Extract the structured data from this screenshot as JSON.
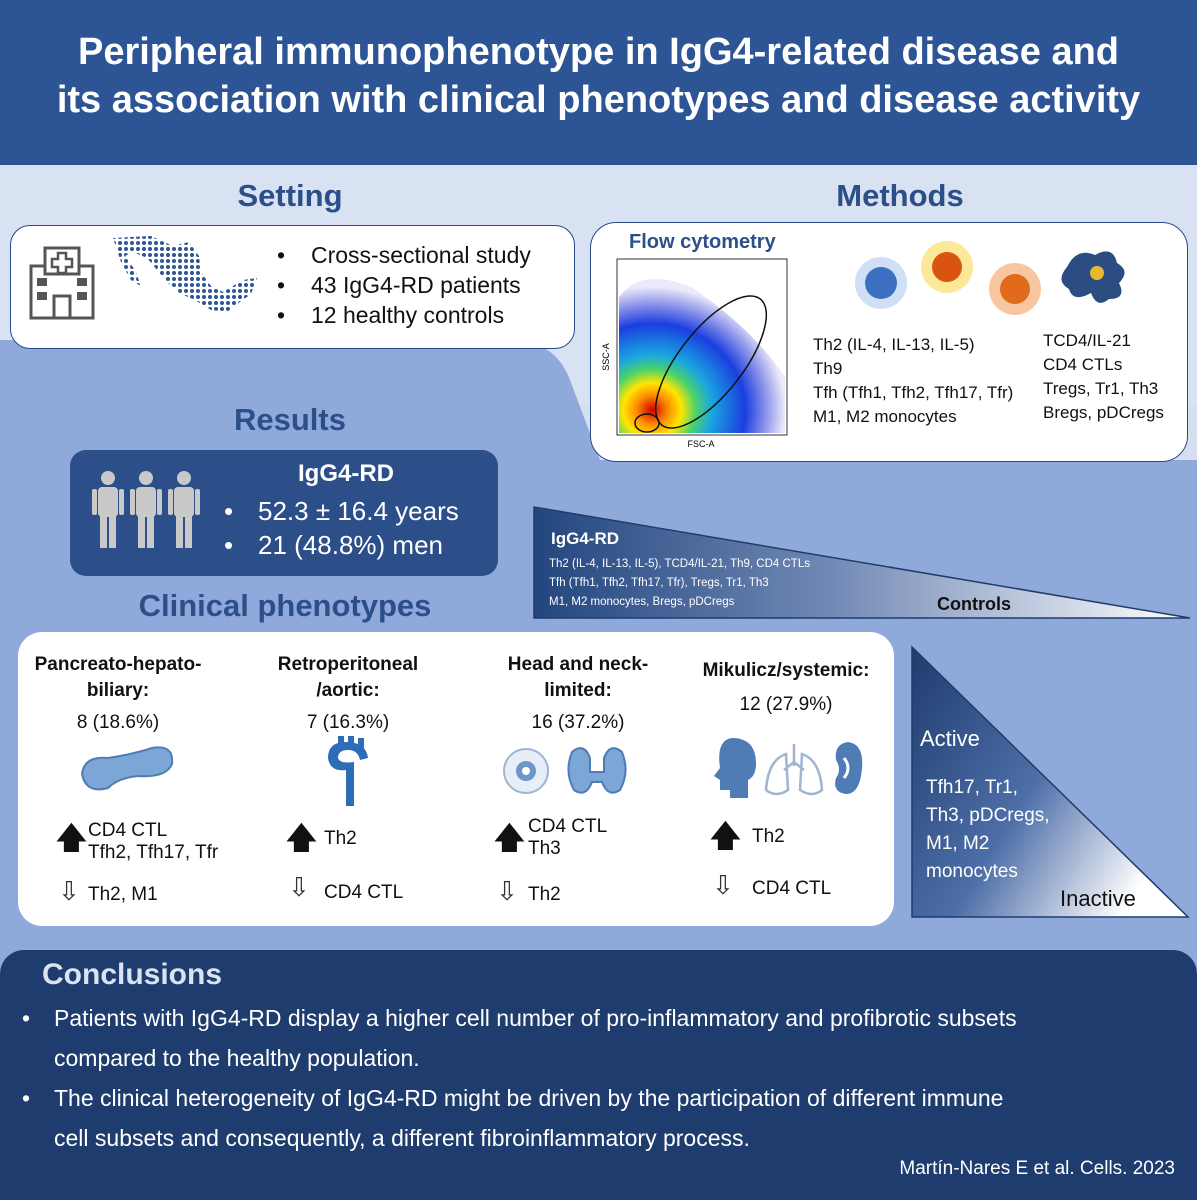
{
  "title": {
    "line1": "Peripheral immunophenotype in IgG4-related disease and",
    "line2": "its association with clinical phenotypes and disease activity"
  },
  "setting": {
    "heading": "Setting",
    "icon_hospital": "hospital-icon",
    "icon_map": "mexico-map-icon",
    "bullets": [
      "Cross-sectional study",
      "43 IgG4-RD patients",
      "12 healthy controls"
    ]
  },
  "methods": {
    "heading": "Methods",
    "flow_title": "Flow cytometry",
    "axis_y": "SSC-A",
    "axis_x": "FSC-A",
    "col1": [
      "Th2 (IL-4, IL-13, IL-5)",
      "Th9",
      "Tfh (Tfh1, Tfh2, Tfh17, Tfr)",
      "M1, M2 monocytes"
    ],
    "col2": [
      "TCD4/IL-21",
      "CD4 CTLs",
      "Tregs, Tr1, Th3",
      "Bregs, pDCregs"
    ]
  },
  "results": {
    "heading": "Results",
    "box_title": "IgG4-RD",
    "bullets": [
      "52.3 ± 16.4 years",
      "21 (48.8%) men"
    ]
  },
  "comparison": {
    "label_left": "IgG4-RD",
    "lines": [
      "Th2 (IL-4, IL-13, IL-5), TCD4/IL-21, Th9, CD4 CTLs",
      "Tfh (Tfh1, Tfh2, Tfh17, Tfr),  Tregs, Tr1, Th3",
      "M1, M2 monocytes, Bregs, pDCregs"
    ],
    "label_right": "Controls"
  },
  "clinical": {
    "heading": "Clinical phenotypes",
    "phenotypes": [
      {
        "title1": "Pancreato-hepato-",
        "title2": "biliary:",
        "pct": "8 (18.6%)",
        "up1": "CD4 CTL",
        "up2": "Tfh2, Tfh17, Tfr",
        "down": "Th2, M1"
      },
      {
        "title1": "Retroperitoneal",
        "title2": "/aortic:",
        "pct": "7 (16.3%)",
        "up1": "Th2",
        "up2": "",
        "down": "CD4 CTL"
      },
      {
        "title1": "Head and neck-",
        "title2": "limited:",
        "pct": "16 (37.2%)",
        "up1": "CD4 CTL",
        "up2": "Th3",
        "down": "Th2"
      },
      {
        "title1": "Mikulicz/systemic:",
        "title2": "",
        "pct": "12 (27.9%)",
        "up1": "Th2",
        "up2": "",
        "down": "CD4 CTL"
      }
    ]
  },
  "activity": {
    "active": "Active",
    "lines": [
      "Tfh17, Tr1,",
      "Th3, pDCregs,",
      "M1, M2",
      "monocytes"
    ],
    "inactive": "Inactive"
  },
  "conclusions": {
    "heading": "Conclusions",
    "b1_l1": "Patients with IgG4-RD display a higher cell number of pro-inflammatory and profibrotic subsets",
    "b1_l2": "compared to the healthy population.",
    "b2_l1": "The clinical heterogeneity of IgG4-RD might be driven by the participation of different immune",
    "b2_l2": "cell subsets and consequently, a different fibroinflammatory process."
  },
  "citation": "Martín-Nares E et al. Cells. 2023",
  "colors": {
    "title_band": "#2d5596",
    "heading": "#2c4f8a",
    "panel_dark": "#1f3c6e",
    "mid_blue": "#8fa9da"
  }
}
